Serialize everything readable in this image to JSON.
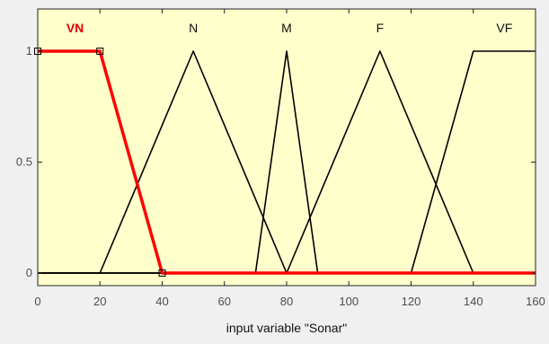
{
  "chart_data": {
    "type": "line",
    "title": "",
    "xlabel": "input variable \"Sonar\"",
    "ylabel": "",
    "xlim": [
      0,
      160
    ],
    "ylim": [
      0,
      1
    ],
    "xticks": [
      "0",
      "20",
      "40",
      "60",
      "80",
      "100",
      "120",
      "140",
      "160"
    ],
    "yticks": [
      "0",
      "0.5",
      "1"
    ],
    "grid": false,
    "colors": {
      "plot_background": "#ffffcc",
      "selected": "#ff0000",
      "default": "#000000"
    },
    "series": [
      {
        "name": "VN",
        "selected": true,
        "x": [
          0,
          20,
          40,
          160
        ],
        "y": [
          1,
          1,
          0,
          0
        ]
      },
      {
        "name": "N",
        "selected": false,
        "x": [
          0,
          20,
          50,
          80,
          160
        ],
        "y": [
          0,
          0,
          1,
          0,
          0
        ]
      },
      {
        "name": "M",
        "selected": false,
        "x": [
          0,
          70,
          80,
          90,
          160
        ],
        "y": [
          0,
          0,
          1,
          0,
          0
        ]
      },
      {
        "name": "F",
        "selected": false,
        "x": [
          0,
          80,
          110,
          140,
          160
        ],
        "y": [
          0,
          0,
          1,
          0,
          0
        ]
      },
      {
        "name": "VF",
        "selected": false,
        "x": [
          0,
          120,
          140,
          160
        ],
        "y": [
          0,
          0,
          1,
          1
        ]
      }
    ],
    "label_x": [
      12,
      50,
      80,
      110,
      150
    ]
  }
}
